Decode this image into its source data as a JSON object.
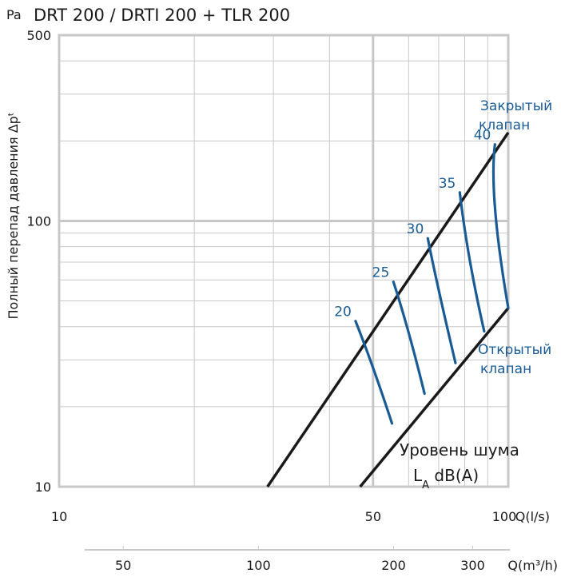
{
  "chart_data": {
    "type": "line",
    "title": "DRT 200 / DRTI 200 + TLR 200",
    "y_unit": "Pa",
    "ylabel": "Полный перепад давления Δpᵗ",
    "x_unit": "Q(l/s)",
    "x2_unit": "Q(m³/h)",
    "x_scale": "log",
    "y_scale": "log",
    "xlim": [
      10,
      100
    ],
    "ylim": [
      10,
      500
    ],
    "x_ticks": [
      {
        "value": 10,
        "label": "10"
      },
      {
        "value": 50,
        "label": "50"
      },
      {
        "value": 100,
        "label": "100"
      }
    ],
    "x2_ticks": [
      {
        "value": 50,
        "label": "50"
      },
      {
        "value": 100,
        "label": "100"
      },
      {
        "value": 200,
        "label": "200"
      },
      {
        "value": 300,
        "label": "300"
      }
    ],
    "y_ticks": [
      {
        "value": 10,
        "label": "10"
      },
      {
        "value": 100,
        "label": "100"
      },
      {
        "value": 500,
        "label": "500"
      }
    ],
    "grid": true,
    "series": [
      {
        "name": "Закрытый клапан",
        "color": "#1a1a1a",
        "points": [
          [
            29.1,
            10
          ],
          [
            100,
            215
          ]
        ]
      },
      {
        "name": "Открытый клапан",
        "color": "#1a1a1a",
        "points": [
          [
            46.8,
            10
          ],
          [
            100,
            47
          ]
        ]
      }
    ],
    "noise_curves": [
      {
        "label": "20",
        "points": [
          [
            45.7,
            42
          ],
          [
            50,
            28
          ],
          [
            55.1,
            17.3
          ]
        ]
      },
      {
        "label": "25",
        "points": [
          [
            55.5,
            59
          ],
          [
            60,
            38
          ],
          [
            65.1,
            22.4
          ]
        ]
      },
      {
        "label": "30",
        "points": [
          [
            66.2,
            86
          ],
          [
            70,
            55
          ],
          [
            76.3,
            29.2
          ]
        ]
      },
      {
        "label": "35",
        "points": [
          [
            78,
            128
          ],
          [
            82,
            72
          ],
          [
            88.4,
            38.4
          ]
        ]
      },
      {
        "label": "40",
        "points": [
          [
            93.4,
            194
          ],
          [
            93.5,
            110
          ],
          [
            100,
            47
          ]
        ]
      }
    ],
    "annotations": {
      "closed_line1": "Закрытый",
      "closed_line2": "клапан",
      "open_line1": "Открытый",
      "open_line2": "клапан",
      "noise_line1": "Уровень шума",
      "noise_L": "L",
      "noise_sub": "A",
      "noise_unit": " dB(A)"
    },
    "colors": {
      "blue": "#1a5b96",
      "black": "#1a1a1a",
      "grid": "#c8c8c8",
      "frame": "#c8c8c8"
    }
  }
}
